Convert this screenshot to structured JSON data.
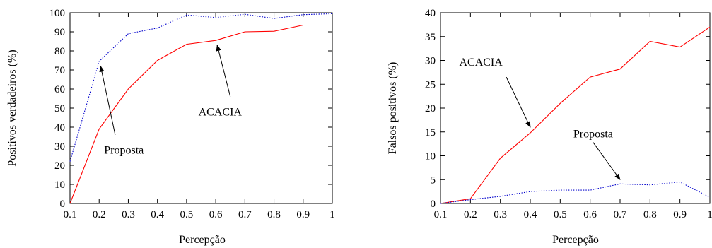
{
  "chart_data": [
    {
      "type": "line",
      "title": "",
      "xlabel": "Percepção",
      "ylabel": "Positivos verdadeiros (%)",
      "xlim": [
        0.1,
        1
      ],
      "ylim": [
        0,
        100
      ],
      "x_ticks": [
        "0.1",
        "0.2",
        "0.3",
        "0.4",
        "0.5",
        "0.6",
        "0.7",
        "0.8",
        "0.9",
        "1"
      ],
      "y_ticks": [
        "0",
        "10",
        "20",
        "30",
        "40",
        "50",
        "60",
        "70",
        "80",
        "90",
        "100"
      ],
      "grid": false,
      "series": [
        {
          "name": "ACACIA",
          "color": "#ff0000",
          "dash": "solid",
          "x": [
            0.1,
            0.2,
            0.3,
            0.4,
            0.5,
            0.6,
            0.7,
            0.8,
            0.9,
            1.0
          ],
          "y": [
            0,
            39,
            60,
            75,
            83.5,
            85.5,
            90,
            90.3,
            93.5,
            93.5
          ]
        },
        {
          "name": "Proposta",
          "color": "#0000cc",
          "dash": "dotted",
          "x": [
            0.1,
            0.2,
            0.3,
            0.4,
            0.5,
            0.6,
            0.7,
            0.8,
            0.9,
            1.0
          ],
          "y": [
            22,
            74.5,
            89,
            92,
            98.8,
            97.5,
            99.2,
            97,
            99,
            99.5
          ]
        }
      ],
      "annotations": [
        {
          "text": "Proposta",
          "label_at": [
            0.285,
            28
          ],
          "arrow_from": [
            0.255,
            36
          ],
          "arrow_to": [
            0.205,
            72
          ]
        },
        {
          "text": "ACACIA",
          "label_at": [
            0.615,
            48
          ],
          "arrow_from": [
            0.65,
            56
          ],
          "arrow_to": [
            0.605,
            83
          ]
        }
      ]
    },
    {
      "type": "line",
      "title": "",
      "xlabel": "Percepção",
      "ylabel": "Falsos positivos (%)",
      "xlim": [
        0.1,
        1
      ],
      "ylim": [
        0,
        40
      ],
      "x_ticks": [
        "0.1",
        "0.2",
        "0.3",
        "0.4",
        "0.5",
        "0.6",
        "0.7",
        "0.8",
        "0.9",
        "1"
      ],
      "y_ticks": [
        "0",
        "5",
        "10",
        "15",
        "20",
        "25",
        "30",
        "35",
        "40"
      ],
      "grid": false,
      "series": [
        {
          "name": "ACACIA",
          "color": "#ff0000",
          "dash": "solid",
          "x": [
            0.1,
            0.2,
            0.3,
            0.4,
            0.5,
            0.6,
            0.7,
            0.8,
            0.9,
            1.0
          ],
          "y": [
            0,
            1,
            9.5,
            14.8,
            21,
            26.5,
            28.2,
            34,
            32.8,
            37
          ]
        },
        {
          "name": "Proposta",
          "color": "#0000cc",
          "dash": "dotted",
          "x": [
            0.1,
            0.2,
            0.3,
            0.4,
            0.5,
            0.6,
            0.7,
            0.8,
            0.9,
            1.0
          ],
          "y": [
            0,
            0.8,
            1.5,
            2.5,
            2.8,
            2.8,
            4.1,
            3.9,
            4.5,
            1.3
          ]
        }
      ],
      "annotations": [
        {
          "text": "ACACIA",
          "label_at": [
            0.235,
            29.6
          ],
          "arrow_from": [
            0.32,
            26.5
          ],
          "arrow_to": [
            0.4,
            16
          ]
        },
        {
          "text": "Proposta",
          "label_at": [
            0.61,
            14.6
          ],
          "arrow_from": [
            0.61,
            12.8
          ],
          "arrow_to": [
            0.7,
            5
          ]
        }
      ]
    }
  ]
}
